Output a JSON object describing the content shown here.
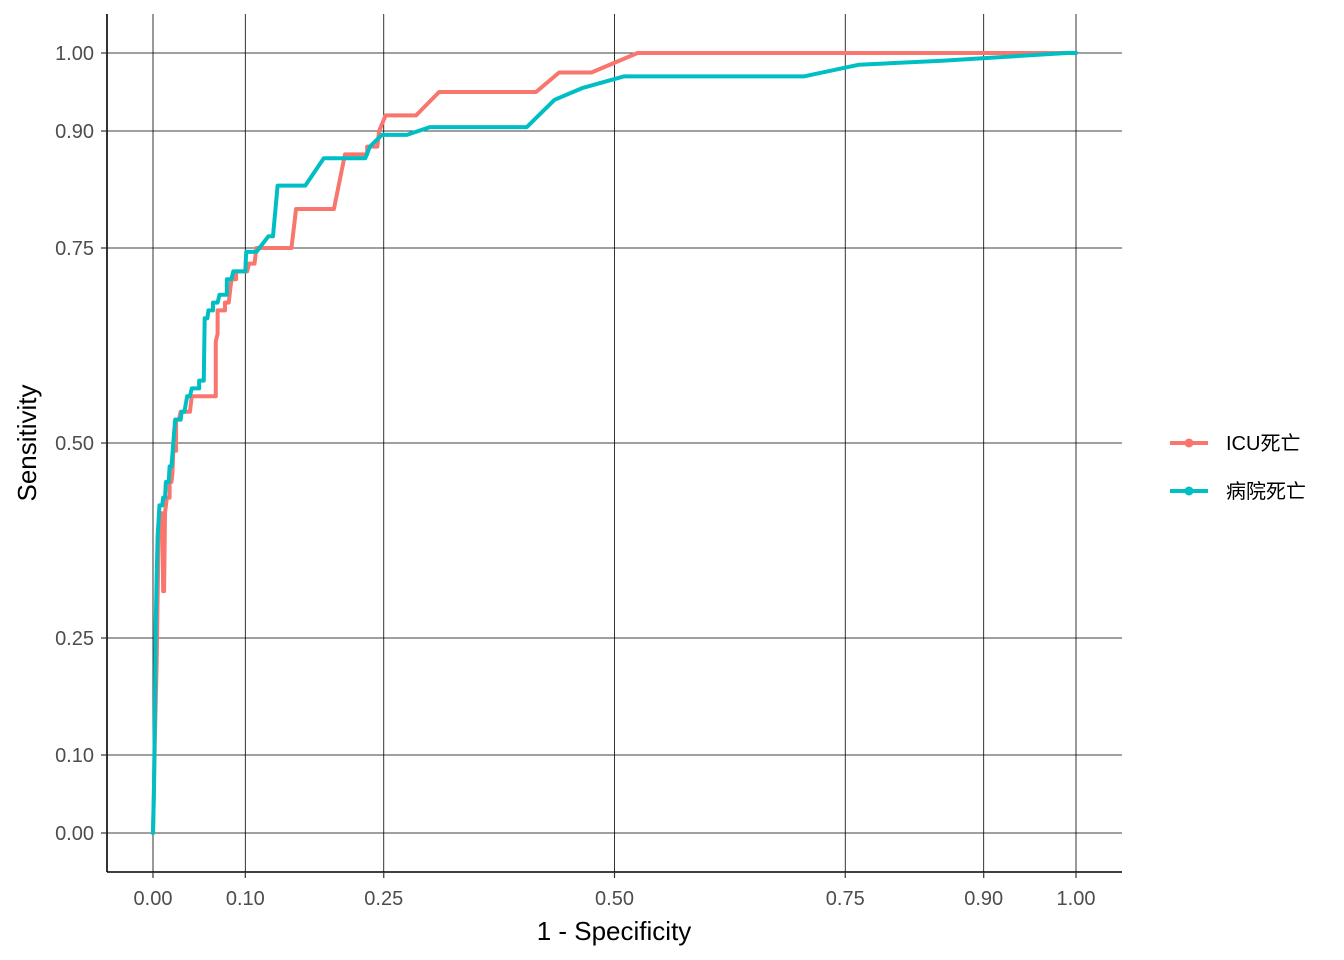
{
  "chart_data": {
    "type": "line",
    "title": "",
    "xlabel": "1 - Specificity",
    "ylabel": "Sensitivity",
    "xlim": [
      0,
      1
    ],
    "ylim": [
      0,
      1
    ],
    "x_ticks": [
      0.0,
      0.1,
      0.25,
      0.5,
      0.75,
      0.9,
      1.0
    ],
    "x_tick_labels": [
      "0.00",
      "0.10",
      "0.25",
      "0.50",
      "0.75",
      "0.90",
      "1.00"
    ],
    "y_ticks": [
      0.0,
      0.1,
      0.25,
      0.5,
      0.75,
      0.9,
      1.0
    ],
    "y_tick_labels": [
      "0.00",
      "0.10",
      "0.25",
      "0.50",
      "0.75",
      "0.90",
      "1.00"
    ],
    "grid": true,
    "legend_position": "right",
    "series": [
      {
        "name": "ICU死亡",
        "color": "#F8766D",
        "points": [
          [
            0.0,
            0.0
          ],
          [
            0.002,
            0.12
          ],
          [
            0.004,
            0.22
          ],
          [
            0.005,
            0.3
          ],
          [
            0.006,
            0.38
          ],
          [
            0.008,
            0.38
          ],
          [
            0.009,
            0.41
          ],
          [
            0.01,
            0.41
          ],
          [
            0.011,
            0.31
          ],
          [
            0.012,
            0.31
          ],
          [
            0.013,
            0.41
          ],
          [
            0.015,
            0.43
          ],
          [
            0.018,
            0.43
          ],
          [
            0.018,
            0.45
          ],
          [
            0.02,
            0.45
          ],
          [
            0.021,
            0.46
          ],
          [
            0.022,
            0.49
          ],
          [
            0.025,
            0.49
          ],
          [
            0.025,
            0.53
          ],
          [
            0.028,
            0.53
          ],
          [
            0.03,
            0.54
          ],
          [
            0.04,
            0.54
          ],
          [
            0.042,
            0.56
          ],
          [
            0.06,
            0.56
          ],
          [
            0.068,
            0.56
          ],
          [
            0.068,
            0.63
          ],
          [
            0.07,
            0.64
          ],
          [
            0.07,
            0.67
          ],
          [
            0.078,
            0.67
          ],
          [
            0.078,
            0.68
          ],
          [
            0.082,
            0.68
          ],
          [
            0.085,
            0.71
          ],
          [
            0.09,
            0.71
          ],
          [
            0.09,
            0.72
          ],
          [
            0.102,
            0.72
          ],
          [
            0.104,
            0.73
          ],
          [
            0.11,
            0.73
          ],
          [
            0.112,
            0.75
          ],
          [
            0.15,
            0.75
          ],
          [
            0.155,
            0.8
          ],
          [
            0.196,
            0.8
          ],
          [
            0.208,
            0.87
          ],
          [
            0.232,
            0.87
          ],
          [
            0.232,
            0.88
          ],
          [
            0.243,
            0.88
          ],
          [
            0.245,
            0.9
          ],
          [
            0.252,
            0.92
          ],
          [
            0.285,
            0.92
          ],
          [
            0.31,
            0.95
          ],
          [
            0.415,
            0.95
          ],
          [
            0.44,
            0.975
          ],
          [
            0.475,
            0.975
          ],
          [
            0.525,
            1.0
          ],
          [
            0.99,
            1.0
          ],
          [
            1.0,
            1.0
          ]
        ]
      },
      {
        "name": "病院死亡",
        "color": "#00BFC4",
        "points": [
          [
            0.0,
            0.0
          ],
          [
            0.001,
            0.05
          ],
          [
            0.002,
            0.15
          ],
          [
            0.003,
            0.27
          ],
          [
            0.004,
            0.33
          ],
          [
            0.005,
            0.38
          ],
          [
            0.006,
            0.4
          ],
          [
            0.007,
            0.42
          ],
          [
            0.01,
            0.42
          ],
          [
            0.011,
            0.43
          ],
          [
            0.013,
            0.43
          ],
          [
            0.014,
            0.45
          ],
          [
            0.017,
            0.45
          ],
          [
            0.018,
            0.47
          ],
          [
            0.02,
            0.47
          ],
          [
            0.022,
            0.5
          ],
          [
            0.024,
            0.53
          ],
          [
            0.03,
            0.53
          ],
          [
            0.031,
            0.54
          ],
          [
            0.034,
            0.54
          ],
          [
            0.037,
            0.56
          ],
          [
            0.04,
            0.56
          ],
          [
            0.042,
            0.57
          ],
          [
            0.05,
            0.57
          ],
          [
            0.05,
            0.58
          ],
          [
            0.055,
            0.58
          ],
          [
            0.056,
            0.66
          ],
          [
            0.059,
            0.66
          ],
          [
            0.06,
            0.67
          ],
          [
            0.065,
            0.67
          ],
          [
            0.065,
            0.68
          ],
          [
            0.07,
            0.68
          ],
          [
            0.072,
            0.69
          ],
          [
            0.08,
            0.69
          ],
          [
            0.08,
            0.71
          ],
          [
            0.085,
            0.71
          ],
          [
            0.087,
            0.72
          ],
          [
            0.1,
            0.72
          ],
          [
            0.101,
            0.745
          ],
          [
            0.112,
            0.745
          ],
          [
            0.125,
            0.765
          ],
          [
            0.13,
            0.765
          ],
          [
            0.135,
            0.83
          ],
          [
            0.165,
            0.83
          ],
          [
            0.185,
            0.865
          ],
          [
            0.21,
            0.865
          ],
          [
            0.23,
            0.865
          ],
          [
            0.235,
            0.88
          ],
          [
            0.248,
            0.895
          ],
          [
            0.275,
            0.895
          ],
          [
            0.3,
            0.905
          ],
          [
            0.405,
            0.905
          ],
          [
            0.435,
            0.94
          ],
          [
            0.465,
            0.955
          ],
          [
            0.51,
            0.97
          ],
          [
            0.705,
            0.97
          ],
          [
            0.765,
            0.985
          ],
          [
            0.855,
            0.99
          ],
          [
            0.99,
            1.0
          ],
          [
            1.0,
            1.0
          ]
        ]
      }
    ]
  }
}
